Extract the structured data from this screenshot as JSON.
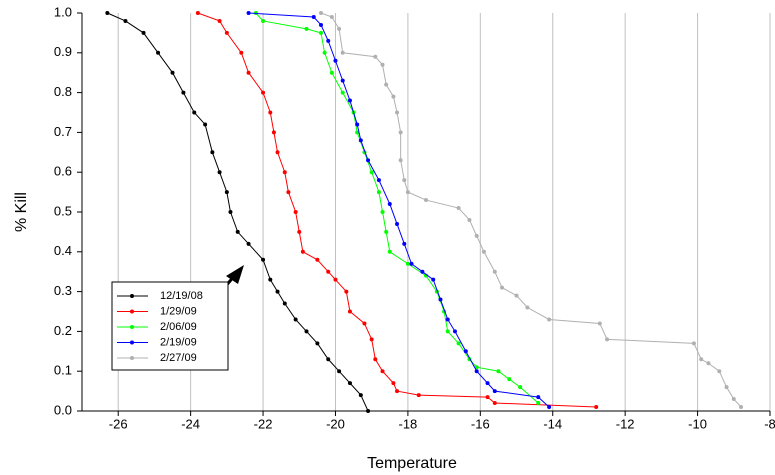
{
  "chart_data": {
    "type": "line",
    "x_label": "Temperature",
    "y_label": "% Kill",
    "xlim": [
      -27,
      -8
    ],
    "xticks": [
      -26,
      -24,
      -22,
      -20,
      -18,
      -16,
      -14,
      -12,
      -10,
      -8
    ],
    "ylim": [
      0,
      1
    ],
    "yticks": [
      {
        "value": 0,
        "label": "0.0"
      },
      {
        "value": 0.1,
        "label": "0.1"
      },
      {
        "value": 0.2,
        "label": "0.2"
      },
      {
        "value": 0.3,
        "label": "0.3"
      },
      {
        "value": 0.4,
        "label": "0.4"
      },
      {
        "value": 0.5,
        "label": "0.5"
      },
      {
        "value": 0.6,
        "label": "0.6"
      },
      {
        "value": 0.7,
        "label": "0.7"
      },
      {
        "value": 0.8,
        "label": "0.8"
      },
      {
        "value": 0.9,
        "label": "0.9"
      },
      {
        "value": 1,
        "label": "1.0"
      }
    ],
    "grid": true,
    "series": [
      {
        "name": "12/19/08",
        "color": "#000000",
        "x": [
          -26.3,
          -25.8,
          -25.3,
          -24.9,
          -24.5,
          -24.2,
          -23.9,
          -23.6,
          -23.4,
          -23.2,
          -23.0,
          -22.9,
          -22.7,
          -22.4,
          -22.0,
          -21.8,
          -21.6,
          -21.4,
          -21.1,
          -20.8,
          -20.5,
          -20.2,
          -19.9,
          -19.6,
          -19.3,
          -19.1
        ],
        "values": [
          1.0,
          0.98,
          0.95,
          0.9,
          0.85,
          0.8,
          0.75,
          0.72,
          0.65,
          0.6,
          0.55,
          0.5,
          0.45,
          0.42,
          0.38,
          0.33,
          0.3,
          0.27,
          0.23,
          0.2,
          0.17,
          0.13,
          0.1,
          0.07,
          0.04,
          0.0
        ]
      },
      {
        "name": "1/29/09",
        "color": "#ff0000",
        "x": [
          -23.8,
          -23.2,
          -23.0,
          -22.6,
          -22.4,
          -22.0,
          -21.8,
          -21.7,
          -21.6,
          -21.4,
          -21.3,
          -21.1,
          -21.0,
          -20.9,
          -20.5,
          -20.2,
          -20.0,
          -19.7,
          -19.6,
          -19.2,
          -19.0,
          -18.9,
          -18.7,
          -18.4,
          -18.3,
          -17.7,
          -15.8,
          -15.6,
          -12.8
        ],
        "values": [
          1.0,
          0.98,
          0.95,
          0.9,
          0.85,
          0.8,
          0.75,
          0.7,
          0.65,
          0.6,
          0.55,
          0.5,
          0.45,
          0.4,
          0.38,
          0.35,
          0.33,
          0.3,
          0.25,
          0.22,
          0.18,
          0.13,
          0.1,
          0.07,
          0.05,
          0.04,
          0.035,
          0.02,
          0.01
        ]
      },
      {
        "name": "2/06/09",
        "color": "#00ff00",
        "x": [
          -22.2,
          -22.0,
          -20.8,
          -20.4,
          -20.3,
          -20.1,
          -19.8,
          -19.5,
          -19.4,
          -19.2,
          -19.0,
          -18.8,
          -18.7,
          -18.6,
          -18.5,
          -18.0,
          -17.5,
          -17.2,
          -17.0,
          -16.9,
          -16.6,
          -16.3,
          -16.1,
          -15.5,
          -15.2,
          -14.9,
          -14.4
        ],
        "values": [
          1.0,
          0.98,
          0.96,
          0.95,
          0.9,
          0.85,
          0.8,
          0.75,
          0.7,
          0.65,
          0.6,
          0.55,
          0.5,
          0.45,
          0.4,
          0.37,
          0.34,
          0.3,
          0.25,
          0.2,
          0.17,
          0.13,
          0.11,
          0.1,
          0.08,
          0.06,
          0.02
        ]
      },
      {
        "name": "2/19/09",
        "color": "#0000ff",
        "x": [
          -22.4,
          -20.6,
          -20.4,
          -20.2,
          -20.0,
          -19.8,
          -19.6,
          -19.4,
          -19.3,
          -19.1,
          -18.8,
          -18.5,
          -18.3,
          -18.1,
          -17.9,
          -17.6,
          -17.3,
          -17.1,
          -16.9,
          -16.7,
          -16.4,
          -16.1,
          -15.8,
          -15.6,
          -14.4,
          -14.1
        ],
        "values": [
          1.0,
          0.99,
          0.97,
          0.93,
          0.88,
          0.83,
          0.78,
          0.72,
          0.68,
          0.63,
          0.58,
          0.52,
          0.47,
          0.42,
          0.37,
          0.35,
          0.33,
          0.28,
          0.23,
          0.2,
          0.15,
          0.1,
          0.07,
          0.05,
          0.035,
          0.01
        ]
      },
      {
        "name": "2/27/09",
        "color": "#b0b0b0",
        "x": [
          -20.4,
          -20.1,
          -19.9,
          -19.8,
          -18.9,
          -18.7,
          -18.6,
          -18.4,
          -18.3,
          -18.2,
          -18.2,
          -18.1,
          -18.0,
          -17.5,
          -16.6,
          -16.3,
          -16.1,
          -15.9,
          -15.6,
          -15.4,
          -15.0,
          -14.7,
          -14.1,
          -12.7,
          -12.5,
          -10.1,
          -9.9,
          -9.7,
          -9.4,
          -9.2,
          -9.0,
          -8.8
        ],
        "values": [
          1.0,
          0.99,
          0.96,
          0.9,
          0.89,
          0.87,
          0.82,
          0.79,
          0.75,
          0.7,
          0.63,
          0.58,
          0.55,
          0.53,
          0.51,
          0.48,
          0.44,
          0.4,
          0.35,
          0.31,
          0.29,
          0.26,
          0.23,
          0.22,
          0.18,
          0.17,
          0.13,
          0.12,
          0.1,
          0.06,
          0.03,
          0.01
        ]
      }
    ]
  }
}
